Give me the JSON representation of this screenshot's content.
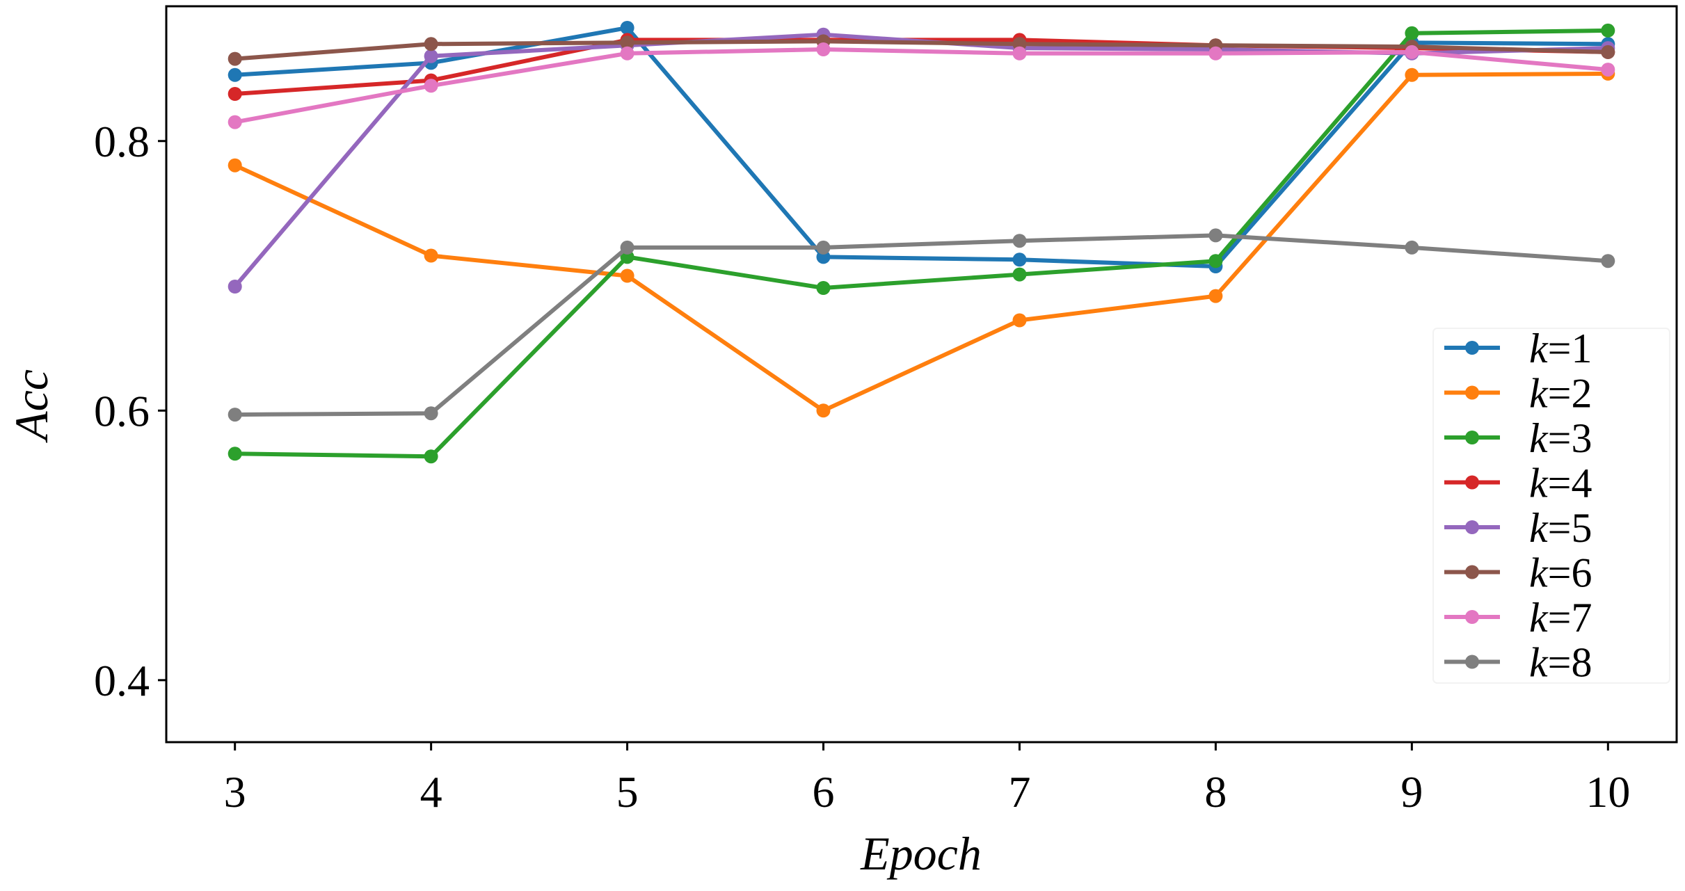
{
  "chart_data": {
    "type": "line",
    "title": "",
    "xlabel": "Epoch",
    "ylabel": "Acc",
    "x": [
      3,
      4,
      5,
      6,
      7,
      8,
      9,
      10
    ],
    "xlim": [
      2.65,
      10.35
    ],
    "ylim": [
      0.354,
      0.9
    ],
    "xticks": [
      3,
      4,
      5,
      6,
      7,
      8,
      9,
      10
    ],
    "xtick_labels": [
      "3",
      "4",
      "5",
      "6",
      "7",
      "8",
      "9",
      "10"
    ],
    "yticks": [
      0.4,
      0.6,
      0.8
    ],
    "ytick_labels": [
      "0.4",
      "0.6",
      "0.8"
    ],
    "grid": false,
    "legend_position": "lower-right",
    "series": [
      {
        "name": "k=1",
        "k_symbol": "k",
        "k_value": "=1",
        "color": "#1f77b4",
        "marker": "circle",
        "values": [
          0.849,
          0.858,
          0.884,
          0.714,
          0.712,
          0.707,
          0.873,
          0.872
        ]
      },
      {
        "name": "k=2",
        "k_symbol": "k",
        "k_value": "=2",
        "color": "#ff7f0e",
        "marker": "circle",
        "values": [
          0.782,
          0.715,
          0.7,
          0.6,
          0.667,
          0.685,
          0.849,
          0.85
        ]
      },
      {
        "name": "k=3",
        "k_symbol": "k",
        "k_value": "=3",
        "color": "#2ca02c",
        "marker": "circle",
        "values": [
          0.568,
          0.566,
          0.714,
          0.691,
          0.701,
          0.711,
          0.88,
          0.882
        ]
      },
      {
        "name": "k=4",
        "k_symbol": "k",
        "k_value": "=4",
        "color": "#d62728",
        "marker": "circle",
        "values": [
          0.835,
          0.845,
          0.875,
          0.875,
          0.875,
          0.871,
          0.869,
          0.866
        ]
      },
      {
        "name": "k=5",
        "k_symbol": "k",
        "k_value": "=5",
        "color": "#9467bd",
        "marker": "circle",
        "values": [
          0.692,
          0.863,
          0.871,
          0.879,
          0.869,
          0.868,
          0.865,
          0.869
        ]
      },
      {
        "name": "k=6",
        "k_symbol": "k",
        "k_value": "=6",
        "color": "#8c564b",
        "marker": "circle",
        "values": [
          0.861,
          0.872,
          0.873,
          0.874,
          0.872,
          0.871,
          0.87,
          0.866
        ]
      },
      {
        "name": "k=7",
        "k_symbol": "k",
        "k_value": "=7",
        "color": "#e377c2",
        "marker": "circle",
        "values": [
          0.814,
          0.841,
          0.865,
          0.868,
          0.865,
          0.865,
          0.866,
          0.853
        ]
      },
      {
        "name": "k=8",
        "k_symbol": "k",
        "k_value": "=8",
        "color": "#7f7f7f",
        "marker": "circle",
        "values": [
          0.597,
          0.598,
          0.721,
          0.721,
          0.726,
          0.73,
          0.721,
          0.711
        ]
      }
    ]
  }
}
